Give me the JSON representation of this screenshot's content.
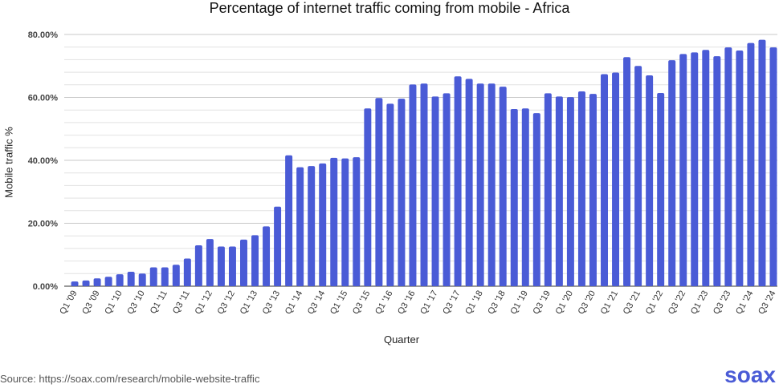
{
  "chart_data": {
    "type": "bar",
    "title": "Percentage of internet traffic coming from mobile - Africa",
    "xlabel": "Quarter",
    "ylabel": "Mobile traffic %",
    "ylim": [
      0,
      80
    ],
    "yticks": [
      "0.00%",
      "20.00%",
      "40.00%",
      "60.00%",
      "80.00%"
    ],
    "grid": true,
    "color": "#4a5bd6",
    "start_year": 9,
    "values": [
      1.5,
      1.8,
      2.5,
      3.0,
      3.8,
      4.6,
      4.0,
      6.0,
      6.0,
      6.8,
      8.8,
      13.0,
      15.0,
      12.6,
      12.6,
      14.8,
      16.2,
      19.0,
      25.3,
      41.6,
      37.8,
      38.2,
      39.0,
      40.8,
      40.6,
      41.0,
      56.5,
      59.8,
      58.0,
      59.6,
      64.1,
      64.4,
      60.3,
      61.3,
      66.7,
      65.9,
      64.4,
      64.4,
      63.4,
      56.3,
      56.5,
      55.0,
      61.3,
      60.3,
      60.1,
      61.9,
      61.1,
      67.4,
      67.9,
      72.8,
      70.0,
      67.0,
      61.4,
      71.8,
      73.8,
      74.3,
      75.1,
      73.1,
      75.9,
      74.9,
      77.3,
      78.3,
      75.9
    ]
  },
  "source": "Source: https://soax.com/research/mobile-website-traffic",
  "logo": "soax"
}
